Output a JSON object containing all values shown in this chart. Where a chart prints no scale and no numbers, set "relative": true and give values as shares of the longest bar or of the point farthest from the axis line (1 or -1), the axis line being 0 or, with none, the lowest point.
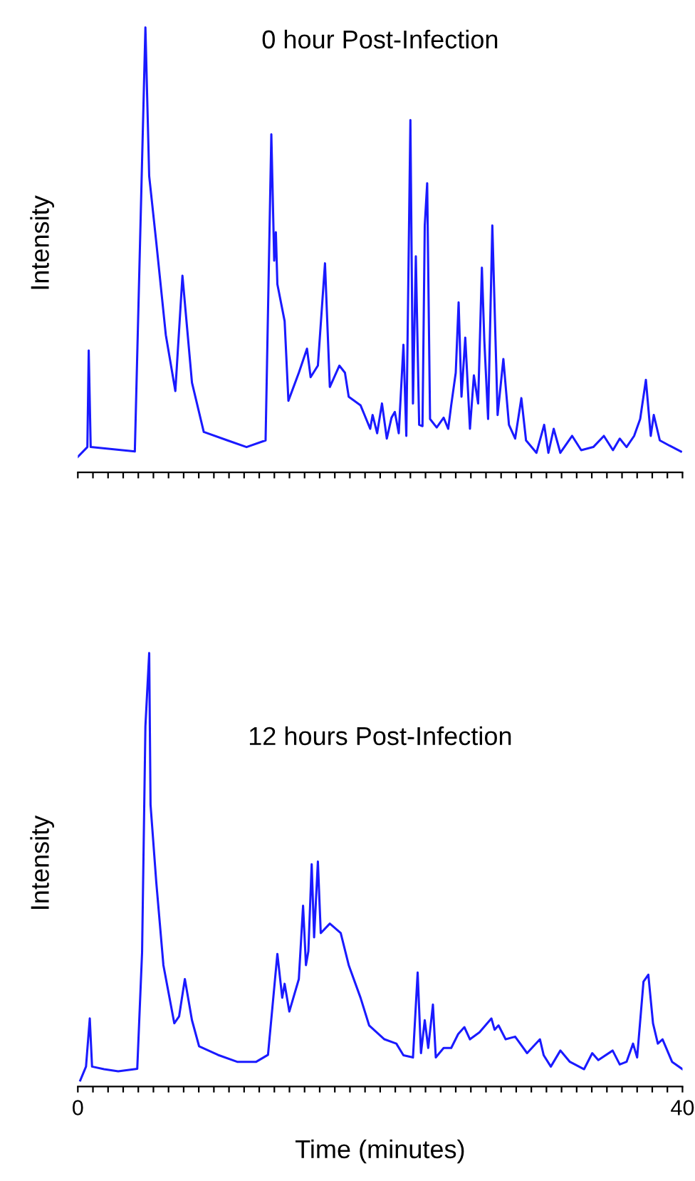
{
  "chart_data": [
    {
      "type": "line",
      "title": "0 hour Post-Infection",
      "ylabel": "Intensity",
      "relative": true,
      "xlim": [
        0,
        40
      ],
      "tick_labels": false,
      "grid": false,
      "legend": false,
      "xticks": [
        {
          "value": 0,
          "label": null
        },
        {
          "value": 1,
          "label": null
        },
        {
          "value": 2,
          "label": null
        },
        {
          "value": 3,
          "label": null
        },
        {
          "value": 4,
          "label": null
        },
        {
          "value": 5,
          "label": null
        },
        {
          "value": 6,
          "label": null
        },
        {
          "value": 7,
          "label": null
        },
        {
          "value": 8,
          "label": null
        },
        {
          "value": 9,
          "label": null
        },
        {
          "value": 10,
          "label": null
        },
        {
          "value": 11,
          "label": null
        },
        {
          "value": 12,
          "label": null
        },
        {
          "value": 13,
          "label": null
        },
        {
          "value": 14,
          "label": null
        },
        {
          "value": 15,
          "label": null
        },
        {
          "value": 16,
          "label": null
        },
        {
          "value": 17,
          "label": null
        },
        {
          "value": 18,
          "label": null
        },
        {
          "value": 19,
          "label": null
        },
        {
          "value": 20,
          "label": null
        },
        {
          "value": 21,
          "label": null
        },
        {
          "value": 22,
          "label": null
        },
        {
          "value": 23,
          "label": null
        },
        {
          "value": 24,
          "label": null
        },
        {
          "value": 25,
          "label": null
        },
        {
          "value": 26,
          "label": null
        },
        {
          "value": 27,
          "label": null
        },
        {
          "value": 28,
          "label": null
        },
        {
          "value": 29,
          "label": null
        },
        {
          "value": 30,
          "label": null
        },
        {
          "value": 31,
          "label": null
        },
        {
          "value": 32,
          "label": null
        },
        {
          "value": 33,
          "label": null
        },
        {
          "value": 34,
          "label": null
        },
        {
          "value": 35,
          "label": null
        },
        {
          "value": 36,
          "label": null
        },
        {
          "value": 37,
          "label": null
        },
        {
          "value": 38,
          "label": null
        },
        {
          "value": 39,
          "label": null
        },
        {
          "value": 40,
          "label": null
        }
      ],
      "series": [
        {
          "color": "#1a1aff",
          "x": [
            0,
            0.63,
            0.72,
            0.85,
            3.77,
            4.47,
            4.72,
            5.19,
            5.82,
            6.45,
            6.92,
            7.55,
            8.33,
            9.9,
            11.16,
            12.42,
            12.8,
            12.99,
            13.1,
            13.2,
            13.68,
            13.93,
            14.62,
            15.16,
            15.4,
            15.88,
            16.35,
            16.67,
            17.3,
            17.67,
            17.92,
            18.7,
            19.34,
            19.5,
            19.8,
            20.12,
            20.44,
            20.75,
            20.97,
            21.23,
            21.54,
            21.73,
            22.0,
            22.17,
            22.36,
            22.58,
            22.8,
            22.95,
            23.11,
            23.3,
            23.74,
            24.2,
            24.5,
            24.7,
            25.0,
            25.19,
            25.38,
            25.63,
            25.94,
            26.2,
            26.48,
            26.73,
            26.89,
            27.14,
            27.42,
            27.77,
            28.15,
            28.52,
            28.93,
            29.34,
            29.65,
            30.34,
            30.85,
            31.13,
            31.48,
            31.92,
            32.7,
            33.3,
            34.1,
            34.8,
            35.4,
            35.85,
            36.3,
            36.8,
            37.2,
            37.58,
            37.9,
            38.1,
            38.5,
            39.15,
            39.9
          ],
          "values": [
            0.035,
            0.057,
            0.274,
            0.057,
            0.047,
            1.0,
            0.666,
            0.517,
            0.309,
            0.183,
            0.442,
            0.202,
            0.091,
            0.072,
            0.057,
            0.072,
            0.76,
            0.476,
            0.54,
            0.423,
            0.34,
            0.161,
            0.224,
            0.278,
            0.214,
            0.24,
            0.47,
            0.192,
            0.24,
            0.224,
            0.17,
            0.151,
            0.098,
            0.129,
            0.088,
            0.155,
            0.076,
            0.123,
            0.136,
            0.088,
            0.287,
            0.082,
            0.792,
            0.155,
            0.486,
            0.107,
            0.104,
            0.555,
            0.65,
            0.12,
            0.101,
            0.123,
            0.098,
            0.151,
            0.224,
            0.382,
            0.17,
            0.303,
            0.098,
            0.218,
            0.155,
            0.46,
            0.297,
            0.12,
            0.555,
            0.129,
            0.255,
            0.107,
            0.076,
            0.167,
            0.072,
            0.044,
            0.107,
            0.044,
            0.098,
            0.044,
            0.082,
            0.05,
            0.057,
            0.082,
            0.05,
            0.076,
            0.057,
            0.082,
            0.12,
            0.208,
            0.082,
            0.129,
            0.072,
            0.06,
            0.047
          ]
        }
      ]
    },
    {
      "type": "line",
      "title": "12 hours Post-Infection",
      "ylabel": "Intensity",
      "xlabel": "Time (minutes)",
      "relative": true,
      "xlim": [
        0,
        40
      ],
      "tick_labels": "x",
      "grid": false,
      "legend": false,
      "xticks": [
        0,
        {
          "value": 1,
          "label": null
        },
        {
          "value": 2,
          "label": null
        },
        {
          "value": 3,
          "label": null
        },
        {
          "value": 4,
          "label": null
        },
        {
          "value": 5,
          "label": null
        },
        {
          "value": 6,
          "label": null
        },
        {
          "value": 7,
          "label": null
        },
        {
          "value": 8,
          "label": null
        },
        {
          "value": 9,
          "label": null
        },
        {
          "value": 10,
          "label": null
        },
        {
          "value": 11,
          "label": null
        },
        {
          "value": 12,
          "label": null
        },
        {
          "value": 13,
          "label": null
        },
        {
          "value": 14,
          "label": null
        },
        {
          "value": 15,
          "label": null
        },
        {
          "value": 16,
          "label": null
        },
        {
          "value": 17,
          "label": null
        },
        {
          "value": 18,
          "label": null
        },
        {
          "value": 19,
          "label": null
        },
        {
          "value": 20,
          "label": null
        },
        {
          "value": 21,
          "label": null
        },
        {
          "value": 22,
          "label": null
        },
        {
          "value": 23,
          "label": null
        },
        {
          "value": 24,
          "label": null
        },
        {
          "value": 25,
          "label": null
        },
        {
          "value": 26,
          "label": null
        },
        {
          "value": 27,
          "label": null
        },
        {
          "value": 28,
          "label": null
        },
        {
          "value": 29,
          "label": null
        },
        {
          "value": 30,
          "label": null
        },
        {
          "value": 31,
          "label": null
        },
        {
          "value": 32,
          "label": null
        },
        {
          "value": 33,
          "label": null
        },
        {
          "value": 34,
          "label": null
        },
        {
          "value": 35,
          "label": null
        },
        {
          "value": 36,
          "label": null
        },
        {
          "value": 37,
          "label": null
        },
        {
          "value": 38,
          "label": null
        },
        {
          "value": 39,
          "label": null
        },
        40
      ],
      "series": [
        {
          "color": "#1a1aff",
          "x": [
            0.16,
            0.54,
            0.79,
            0.94,
            1.73,
            2.67,
            3.93,
            4.25,
            4.47,
            4.72,
            4.81,
            5.19,
            5.66,
            6.38,
            6.7,
            7.08,
            7.55,
            8.02,
            9.27,
            10.54,
            11.8,
            12.58,
            13.2,
            13.52,
            13.68,
            13.99,
            14.62,
            14.9,
            15.09,
            15.25,
            15.47,
            15.63,
            15.88,
            16.07,
            16.67,
            17.39,
            17.92,
            18.7,
            19.27,
            20.28,
            21.07,
            21.54,
            22.17,
            22.48,
            22.7,
            22.95,
            23.18,
            23.49,
            23.68,
            24.2,
            24.7,
            25.16,
            25.57,
            25.94,
            26.57,
            27.36,
            27.57,
            27.83,
            28.3,
            28.93,
            29.72,
            30.57,
            30.82,
            31.29,
            31.92,
            32.55,
            33.49,
            34.03,
            34.43,
            35.38,
            35.85,
            36.3,
            36.73,
            37.0,
            37.42,
            37.74,
            38.05,
            38.37,
            38.68,
            39.31,
            40.0
          ],
          "values": [
            0.014,
            0.046,
            0.157,
            0.046,
            0.04,
            0.035,
            0.041,
            0.31,
            0.831,
            1.0,
            0.65,
            0.471,
            0.28,
            0.146,
            0.162,
            0.248,
            0.153,
            0.093,
            0.073,
            0.057,
            0.057,
            0.073,
            0.306,
            0.205,
            0.237,
            0.173,
            0.248,
            0.417,
            0.28,
            0.312,
            0.513,
            0.344,
            0.519,
            0.354,
            0.376,
            0.354,
            0.28,
            0.205,
            0.141,
            0.109,
            0.099,
            0.072,
            0.067,
            0.263,
            0.077,
            0.153,
            0.089,
            0.189,
            0.067,
            0.089,
            0.089,
            0.121,
            0.137,
            0.109,
            0.125,
            0.157,
            0.131,
            0.141,
            0.109,
            0.115,
            0.077,
            0.109,
            0.072,
            0.046,
            0.083,
            0.057,
            0.04,
            0.077,
            0.061,
            0.083,
            0.051,
            0.057,
            0.099,
            0.067,
            0.242,
            0.258,
            0.146,
            0.099,
            0.109,
            0.057,
            0.04
          ]
        }
      ]
    }
  ]
}
